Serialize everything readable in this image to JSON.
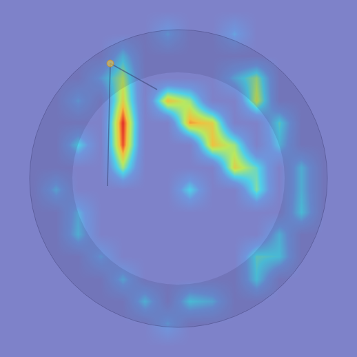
{
  "chart_data": {
    "type": "heatmap",
    "z": [
      [
        0,
        0,
        0,
        0,
        0,
        0,
        0,
        0,
        0,
        0,
        0,
        0,
        0,
        0,
        0,
        0
      ],
      [
        0,
        0,
        0,
        0,
        0,
        0,
        0,
        0.3,
        0,
        0,
        0.3,
        0,
        0,
        0,
        0,
        0
      ],
      [
        0,
        0,
        0,
        0,
        0,
        0.4,
        0,
        0,
        0,
        0,
        0,
        0,
        0,
        0,
        0,
        0
      ],
      [
        0,
        0,
        0,
        0,
        0.3,
        0.65,
        0,
        0,
        0,
        0,
        0.35,
        0.6,
        0,
        0,
        0,
        0
      ],
      [
        0,
        0,
        0,
        0.3,
        0,
        0.75,
        0,
        0.8,
        0.6,
        0,
        0,
        0.7,
        0,
        0,
        0,
        0
      ],
      [
        0,
        0,
        0,
        0,
        0,
        1.0,
        0,
        0,
        0.85,
        0.75,
        0,
        0,
        0.5,
        0,
        0,
        0
      ],
      [
        0,
        0,
        0,
        0.45,
        0,
        0.95,
        0,
        0,
        0,
        0.8,
        0.6,
        0,
        0.4,
        0,
        0,
        0
      ],
      [
        0,
        0,
        0,
        0,
        0,
        0.6,
        0,
        0,
        0,
        0,
        0.75,
        0.5,
        0,
        0.4,
        0,
        0
      ],
      [
        0,
        0,
        0.35,
        0,
        0,
        0,
        0,
        0,
        0.45,
        0,
        0,
        0.55,
        0,
        0.4,
        0,
        0
      ],
      [
        0,
        0,
        0,
        0.35,
        0,
        0,
        0,
        0,
        0,
        0,
        0,
        0,
        0,
        0.45,
        0,
        0
      ],
      [
        0,
        0,
        0,
        0.4,
        0,
        0,
        0,
        0,
        0,
        0,
        0,
        0,
        0.4,
        0,
        0,
        0
      ],
      [
        0,
        0,
        0,
        0,
        0.3,
        0,
        0,
        0,
        0,
        0,
        0,
        0.5,
        0.45,
        0,
        0,
        0
      ],
      [
        0,
        0,
        0,
        0,
        0,
        0.35,
        0,
        0,
        0,
        0,
        0,
        0.45,
        0,
        0,
        0,
        0
      ],
      [
        0,
        0,
        0,
        0,
        0,
        0,
        0.4,
        0,
        0.45,
        0.35,
        0,
        0,
        0,
        0,
        0,
        0
      ],
      [
        0,
        0,
        0,
        0,
        0,
        0,
        0,
        0.3,
        0,
        0,
        0,
        0,
        0,
        0,
        0,
        0
      ],
      [
        0,
        0,
        0,
        0,
        0,
        0,
        0,
        0,
        0,
        0,
        0,
        0,
        0,
        0,
        0,
        0
      ]
    ],
    "xlim": [
      -0.5,
      15.5
    ],
    "ylim": [
      15.5,
      -0.5
    ],
    "zlim": [
      0,
      1
    ],
    "tick_labels": false
  }
}
